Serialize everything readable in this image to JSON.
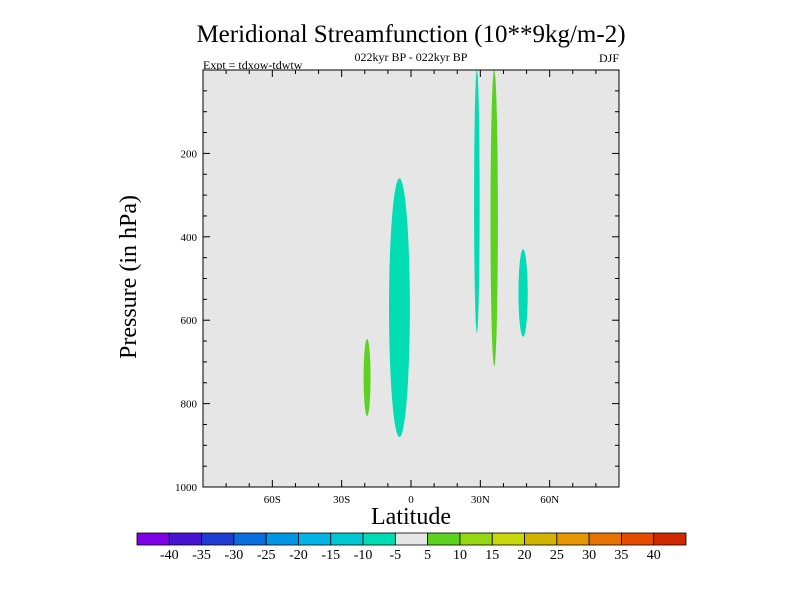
{
  "chart_data": {
    "type": "contour",
    "title": "Meridional Streamfunction (10**9kg/m-2)",
    "subtitle": "022kyr BP - 022kyr BP",
    "left_label": "Expt = tdxow-tdwtw",
    "right_label": "DJF",
    "xlabel": "Latitude",
    "ylabel": "Pressure (in hPa)",
    "xlim": [
      -90,
      90
    ],
    "ylim": [
      0,
      1000
    ],
    "y_inverted": true,
    "x_ticks": [
      {
        "value": -60,
        "label": "60S"
      },
      {
        "value": -30,
        "label": "30S"
      },
      {
        "value": 0,
        "label": "0"
      },
      {
        "value": 30,
        "label": "30N"
      },
      {
        "value": 60,
        "label": "60N"
      }
    ],
    "y_ticks": [
      {
        "value": 200,
        "label": "200"
      },
      {
        "value": 400,
        "label": "400"
      },
      {
        "value": 600,
        "label": "600"
      },
      {
        "value": 800,
        "label": "800"
      },
      {
        "value": 1000,
        "label": "1000"
      }
    ],
    "background_color": "#e6e6e6",
    "regions": [
      {
        "name": "region-sh-tropics-negative",
        "level": -10,
        "color": "#00dcb4",
        "lat_center": -5,
        "lat_halfwidth": 4.5,
        "p_top": 260,
        "p_bottom": 880
      },
      {
        "name": "region-30s-positive",
        "level": 5,
        "color": "#5ad21e",
        "lat_center": -19,
        "lat_halfwidth": 1.5,
        "p_top": 645,
        "p_bottom": 830
      },
      {
        "name": "region-30n-negative",
        "level": -10,
        "color": "#00dcb4",
        "lat_center": 28.5,
        "lat_halfwidth": 1.2,
        "p_top": 0,
        "p_bottom": 630
      },
      {
        "name": "region-35n-positive",
        "level": 5,
        "color": "#5ad21e",
        "lat_center": 36,
        "lat_halfwidth": 1.6,
        "p_top": 0,
        "p_bottom": 710
      },
      {
        "name": "region-48n-negative",
        "level": -10,
        "color": "#00dcb4",
        "lat_center": 48.5,
        "lat_halfwidth": 2,
        "p_top": 430,
        "p_bottom": 640
      }
    ],
    "colorbar": {
      "labels": [
        "-40",
        "-35",
        "-30",
        "-25",
        "-20",
        "-15",
        "-10",
        "-5",
        "5",
        "10",
        "15",
        "20",
        "25",
        "30",
        "35",
        "40"
      ],
      "colors": [
        "#7f00e6",
        "#4614d2",
        "#1e3cd2",
        "#0a6ede",
        "#0096e6",
        "#00b4e6",
        "#00c8d2",
        "#00dcb4",
        "#e6e6e6",
        "#5ad21e",
        "#96d714",
        "#c8d70a",
        "#d2b400",
        "#e69600",
        "#e67300",
        "#e64b00",
        "#d22800"
      ]
    }
  }
}
